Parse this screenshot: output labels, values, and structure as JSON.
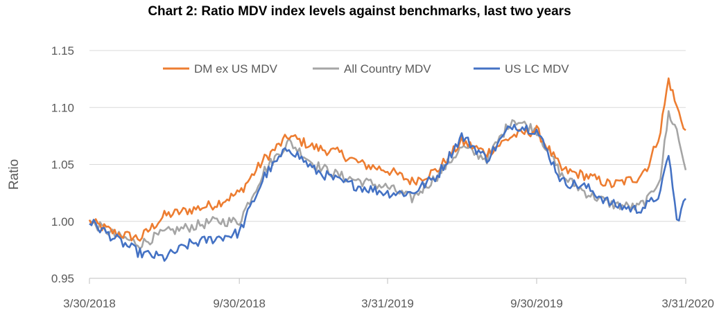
{
  "chart_data": {
    "type": "line",
    "title": "Chart 2: Ratio MDV index levels against benchmarks, last two years",
    "ylabel": "Ratio",
    "xlabel": "",
    "ylim": [
      0.95,
      1.15
    ],
    "yticks": [
      "0.95",
      "1.00",
      "1.05",
      "1.10",
      "1.15"
    ],
    "xticks": [
      "3/30/2018",
      "9/30/2018",
      "3/31/2019",
      "9/30/2019",
      "3/31/2020"
    ],
    "grid": "horizontal",
    "legend_position": "top",
    "x": [
      "2018-03-30",
      "2018-04-30",
      "2018-05-31",
      "2018-06-30",
      "2018-07-31",
      "2018-08-31",
      "2018-09-30",
      "2018-10-31",
      "2018-11-30",
      "2018-12-31",
      "2019-01-31",
      "2019-02-28",
      "2019-03-31",
      "2019-04-30",
      "2019-05-31",
      "2019-06-30",
      "2019-07-31",
      "2019-08-31",
      "2019-09-30",
      "2019-10-31",
      "2019-11-30",
      "2019-12-31",
      "2020-01-31",
      "2020-02-15",
      "2020-02-29",
      "2020-03-10",
      "2020-03-20",
      "2020-03-31"
    ],
    "series": [
      {
        "name": "DM ex US MDV",
        "color": "#ED7D31",
        "values": [
          1.0,
          0.99,
          0.985,
          1.005,
          1.01,
          1.015,
          1.025,
          1.055,
          1.075,
          1.065,
          1.06,
          1.05,
          1.045,
          1.035,
          1.045,
          1.07,
          1.06,
          1.075,
          1.08,
          1.045,
          1.04,
          1.032,
          1.038,
          1.05,
          1.08,
          1.125,
          1.1,
          1.08
        ]
      },
      {
        "name": "All Country MDV",
        "color": "#A5A5A5",
        "values": [
          1.0,
          0.988,
          0.98,
          0.99,
          0.995,
          1.0,
          1.0,
          1.045,
          1.07,
          1.05,
          1.04,
          1.035,
          1.03,
          1.02,
          1.04,
          1.065,
          1.055,
          1.09,
          1.08,
          1.04,
          1.025,
          1.015,
          1.012,
          1.02,
          1.04,
          1.095,
          1.08,
          1.045
        ]
      },
      {
        "name": "US LC MDV",
        "color": "#4472C4",
        "values": [
          1.0,
          0.985,
          0.972,
          0.968,
          0.98,
          0.985,
          0.99,
          1.04,
          1.065,
          1.045,
          1.035,
          1.03,
          1.025,
          1.025,
          1.04,
          1.075,
          1.055,
          1.085,
          1.08,
          1.035,
          1.03,
          1.015,
          1.01,
          1.015,
          1.025,
          1.06,
          1.0,
          1.02
        ]
      }
    ]
  }
}
